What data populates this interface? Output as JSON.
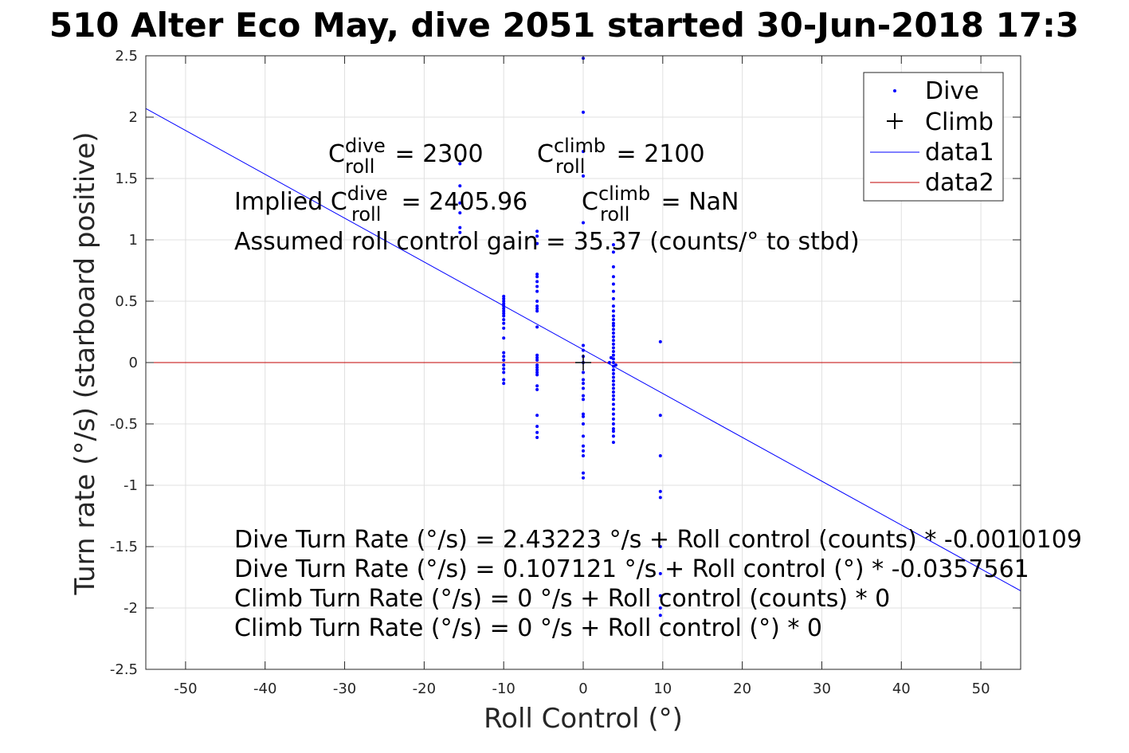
{
  "chart_data": {
    "type": "scatter",
    "title": "510 Alter Eco May, dive 2051 started 30-Jun-2018 17:3",
    "xlabel": "Roll Control (°)",
    "ylabel": "Turn rate (°/s) (starboard positive)",
    "xlim": [
      -55,
      55
    ],
    "ylim": [
      -2.5,
      2.5
    ],
    "grid": true,
    "legend_position": "top-right",
    "x_ticks": [
      -50,
      -40,
      -30,
      -20,
      -10,
      0,
      10,
      20,
      30,
      40,
      50
    ],
    "x_tick_labels": [
      "-50",
      "-40",
      "-30",
      "-20",
      "-10",
      "0",
      "10",
      "20",
      "30",
      "40",
      "50"
    ],
    "y_ticks": [
      -2.5,
      -2,
      -1.5,
      -1,
      -0.5,
      0,
      0.5,
      1,
      1.5,
      2,
      2.5
    ],
    "y_tick_labels": [
      "-2.5",
      "-2",
      "-1.5",
      "-1",
      "-0.5",
      "0",
      "0.5",
      "1",
      "1.5",
      "2",
      "2.5"
    ],
    "legend": [
      "Dive",
      "Climb",
      "data1",
      "data2"
    ],
    "colors": {
      "dive": "#0000ff",
      "climb": "#000000",
      "data1": "#0000ff",
      "data2": "#c00000"
    },
    "series": [
      {
        "name": "Dive",
        "style": "points",
        "points": [
          [
            -15.5,
            1.62
          ],
          [
            -15.5,
            1.44
          ],
          [
            -15.5,
            1.3
          ],
          [
            -15.5,
            1.22
          ],
          [
            -15.5,
            1.1
          ],
          [
            -15.5,
            1.06
          ],
          [
            -10,
            0.54
          ],
          [
            -10,
            0.52
          ],
          [
            -10,
            0.5
          ],
          [
            -10,
            0.48
          ],
          [
            -10,
            0.46
          ],
          [
            -10,
            0.44
          ],
          [
            -10,
            0.42
          ],
          [
            -10,
            0.4
          ],
          [
            -10,
            0.38
          ],
          [
            -10,
            0.35
          ],
          [
            -10,
            0.32
          ],
          [
            -10,
            0.28
          ],
          [
            -10,
            0.2
          ],
          [
            -10,
            0.08
          ],
          [
            -10,
            0.05
          ],
          [
            -10,
            0.02
          ],
          [
            -10,
            -0.02
          ],
          [
            -10,
            -0.05
          ],
          [
            -10,
            -0.08
          ],
          [
            -10,
            -0.14
          ],
          [
            -10,
            -0.17
          ],
          [
            -5.8,
            1.07
          ],
          [
            -5.8,
            1.03
          ],
          [
            -5.8,
            0.97
          ],
          [
            -5.8,
            0.72
          ],
          [
            -5.8,
            0.7
          ],
          [
            -5.8,
            0.66
          ],
          [
            -5.8,
            0.62
          ],
          [
            -5.8,
            0.58
          ],
          [
            -5.8,
            0.5
          ],
          [
            -5.8,
            0.46
          ],
          [
            -5.8,
            0.44
          ],
          [
            -5.8,
            0.42
          ],
          [
            -5.8,
            0.29
          ],
          [
            -5.8,
            0.06
          ],
          [
            -5.8,
            0.04
          ],
          [
            -5.8,
            0.02
          ],
          [
            -5.8,
            -0.02
          ],
          [
            -5.8,
            -0.04
          ],
          [
            -5.8,
            -0.06
          ],
          [
            -5.8,
            -0.08
          ],
          [
            -5.8,
            -0.1
          ],
          [
            -5.8,
            -0.19
          ],
          [
            -5.8,
            -0.22
          ],
          [
            -5.8,
            -0.43
          ],
          [
            -5.8,
            -0.52
          ],
          [
            -5.8,
            -0.57
          ],
          [
            -5.8,
            -0.61
          ],
          [
            0,
            2.48
          ],
          [
            0,
            2.04
          ],
          [
            0,
            1.72
          ],
          [
            0,
            1.52
          ],
          [
            0,
            1.14
          ],
          [
            0,
            0.14
          ],
          [
            0,
            0.1
          ],
          [
            0,
            0.05
          ],
          [
            0,
            0.0
          ],
          [
            0,
            -0.08
          ],
          [
            0,
            -0.14
          ],
          [
            0,
            -0.17
          ],
          [
            0,
            -0.21
          ],
          [
            0,
            -0.27
          ],
          [
            0,
            -0.3
          ],
          [
            0,
            -0.42
          ],
          [
            0,
            -0.44
          ],
          [
            0,
            -0.5
          ],
          [
            0,
            -0.6
          ],
          [
            0,
            -0.68
          ],
          [
            0,
            -0.72
          ],
          [
            0,
            -0.76
          ],
          [
            0,
            -0.9
          ],
          [
            0,
            -0.94
          ],
          [
            3.8,
            0.96
          ],
          [
            3.8,
            0.9
          ],
          [
            3.8,
            0.78
          ],
          [
            3.8,
            0.7
          ],
          [
            3.8,
            0.64
          ],
          [
            3.8,
            0.58
          ],
          [
            3.8,
            0.52
          ],
          [
            3.8,
            0.46
          ],
          [
            3.8,
            0.42
          ],
          [
            3.8,
            0.38
          ],
          [
            3.8,
            0.35
          ],
          [
            3.8,
            0.32
          ],
          [
            3.8,
            0.3
          ],
          [
            3.8,
            0.27
          ],
          [
            3.8,
            0.24
          ],
          [
            3.8,
            0.21
          ],
          [
            3.8,
            0.18
          ],
          [
            3.8,
            0.15
          ],
          [
            3.8,
            0.12
          ],
          [
            3.8,
            0.09
          ],
          [
            3.8,
            0.06
          ],
          [
            3.8,
            0.03
          ],
          [
            3.8,
            0.0
          ],
          [
            3.8,
            -0.03
          ],
          [
            3.8,
            -0.06
          ],
          [
            3.8,
            -0.09
          ],
          [
            3.8,
            -0.12
          ],
          [
            3.8,
            -0.15
          ],
          [
            3.8,
            -0.18
          ],
          [
            3.8,
            -0.21
          ],
          [
            3.8,
            -0.24
          ],
          [
            3.8,
            -0.27
          ],
          [
            3.8,
            -0.3
          ],
          [
            3.8,
            -0.34
          ],
          [
            3.8,
            -0.38
          ],
          [
            3.8,
            -0.42
          ],
          [
            3.8,
            -0.46
          ],
          [
            3.8,
            -0.5
          ],
          [
            3.8,
            -0.54
          ],
          [
            3.8,
            -0.56
          ],
          [
            3.8,
            -0.6
          ],
          [
            3.8,
            -0.65
          ],
          [
            3.5,
            0.04
          ],
          [
            4.1,
            -0.02
          ],
          [
            3.3,
            0.0
          ],
          [
            9.7,
            0.17
          ],
          [
            9.7,
            -0.43
          ],
          [
            9.7,
            -0.76
          ],
          [
            9.7,
            -1.05
          ],
          [
            9.7,
            -1.1
          ],
          [
            9.7,
            -1.5
          ],
          [
            9.7,
            -1.72
          ],
          [
            9.7,
            -1.9
          ],
          [
            9.7,
            -2.0
          ],
          [
            9.7,
            -2.06
          ]
        ]
      },
      {
        "name": "Climb",
        "style": "plus",
        "points": [
          [
            0,
            0
          ]
        ]
      },
      {
        "name": "data1",
        "style": "line",
        "x": [
          -55,
          55
        ],
        "y": [
          2.07,
          -1.86
        ]
      },
      {
        "name": "data2",
        "style": "line",
        "x": [
          -55,
          55
        ],
        "y": [
          0,
          0
        ]
      }
    ],
    "annotations": {
      "c_dive_prefix": "C",
      "c_dive_sup": "dive",
      "c_dive_sub": "roll",
      "c_dive_value": " = 2300",
      "c_climb_prefix": "C",
      "c_climb_sup": "climb",
      "c_climb_sub": "roll",
      "c_climb_value": " = 2100",
      "implied_prefix": "Implied C",
      "implied_sup": "dive",
      "implied_sub": "roll",
      "implied_value": " = 2405.96",
      "implied_climb_prefix": "C",
      "implied_climb_sup": "climb",
      "implied_climb_sub": "roll",
      "implied_climb_value": " = NaN",
      "gain_line": "Assumed roll control gain = 35.37 (counts/° to stbd)",
      "fit_lines": [
        "Dive Turn Rate (°/s) = 2.43223 °/s + Roll control (counts) * -0.0010109",
        "Dive Turn Rate (°/s) = 0.107121 °/s + Roll control (°) * -0.0357561",
        "Climb Turn Rate (°/s) = 0 °/s + Roll control (counts) * 0",
        "Climb Turn Rate (°/s) = 0 °/s + Roll control (°) * 0"
      ]
    }
  }
}
